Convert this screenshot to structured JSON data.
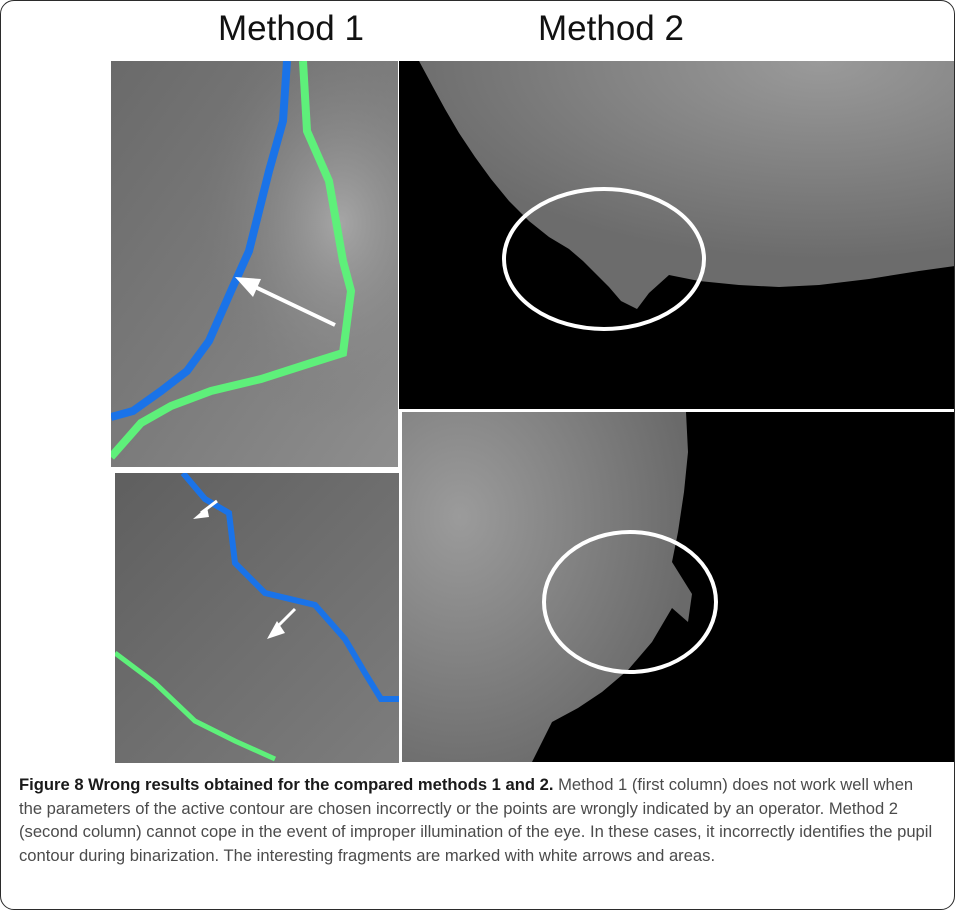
{
  "figure": {
    "method1_title": "Method 1",
    "method2_title": "Method 2",
    "caption_label": "Figure 8 Wrong results obtained for the compared methods 1 and 2.",
    "caption_text": "Method 1 (first column) does not work well when the parameters of the active contour are chosen incorrectly or the points are wrongly indicated by an operator. Method 2 (second column) cannot cope in the event of improper illumination of the eye. In these cases, it incorrectly identifies the pupil contour during binarization. The interesting fragments are marked with white arrows and areas."
  },
  "colors": {
    "contour_blue": "#1a73e8",
    "contour_green": "#5ef07a",
    "pupil_black": "#000000",
    "marker_white": "#ffffff"
  }
}
